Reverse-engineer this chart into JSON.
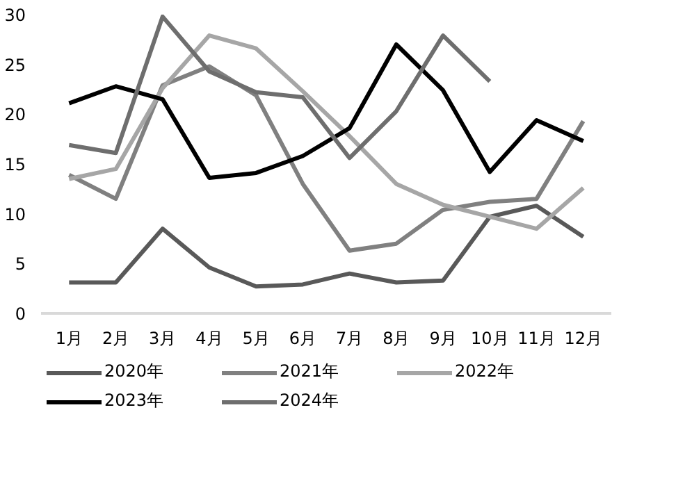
{
  "chart_data": {
    "type": "line",
    "categories": [
      "1月",
      "2月",
      "3月",
      "4月",
      "5月",
      "6月",
      "7月",
      "8月",
      "9月",
      "10月",
      "11月",
      "12月"
    ],
    "series": [
      {
        "name": "2020年",
        "color": "#595959",
        "values": [
          3.1,
          3.1,
          8.5,
          4.6,
          2.7,
          2.9,
          4.0,
          3.1,
          3.3,
          9.7,
          10.8,
          7.7
        ]
      },
      {
        "name": "2021年",
        "color": "#808080",
        "values": [
          13.9,
          11.5,
          22.9,
          24.8,
          21.9,
          13.0,
          6.3,
          7.0,
          10.4,
          11.2,
          11.5,
          19.3
        ]
      },
      {
        "name": "2022年",
        "color": "#a6a6a6",
        "values": [
          13.5,
          14.5,
          22.6,
          27.9,
          26.6,
          22.3,
          17.8,
          13.0,
          10.9,
          9.7,
          8.5,
          12.6
        ]
      },
      {
        "name": "2023年",
        "color": "#000000",
        "values": [
          21.1,
          22.8,
          21.5,
          13.6,
          14.1,
          15.8,
          18.6,
          27.0,
          22.4,
          14.2,
          19.4,
          17.3
        ]
      },
      {
        "name": "2024年",
        "color": "#6e6e6e",
        "values": [
          16.9,
          16.1,
          29.8,
          24.3,
          22.2,
          21.7,
          15.6,
          20.3,
          27.9,
          23.3,
          null,
          null
        ]
      }
    ],
    "ylim": [
      0,
      30
    ],
    "yticks": [
      0,
      5,
      10,
      15,
      20,
      25,
      30
    ],
    "grid": false,
    "legend": "bottom",
    "marker": "none",
    "line_style": "solid"
  }
}
